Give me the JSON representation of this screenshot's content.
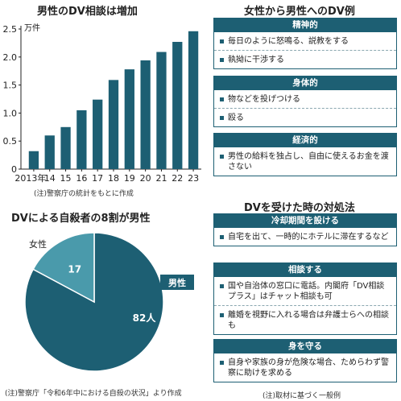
{
  "colors": {
    "bar": "#1d5f73",
    "pie_main": "#1d5f73",
    "pie_minor": "#4a9aab",
    "panel": "#1d5f73",
    "panel_text": "#ffffff"
  },
  "left_top": {
    "title": "男性のDV相談は増加",
    "note": "(注)警察庁の統計をもとに作成"
  },
  "left_bottom": {
    "title": "DVによる自殺者の8割が男性",
    "note": "(注)警察庁「令和6年中における自殺の状況」より作成"
  },
  "right_top": {
    "title": "女性から男性へのDV例",
    "panels": [
      {
        "head": "精神的",
        "items": [
          "毎日のように怒鳴る、説教をする",
          "執拗に干渉する"
        ]
      },
      {
        "head": "身体的",
        "items": [
          "物などを投げつける",
          "殴る"
        ]
      },
      {
        "head": "経済的",
        "items": [
          "男性の給料を独占し、自由に使えるお金を渡さない"
        ]
      }
    ]
  },
  "right_bottom": {
    "title": "DVを受けた時の対処法",
    "note": "(注)取材に基づく一般例",
    "panels": [
      {
        "head": "冷却期間を設ける",
        "items": [
          "自宅を出て、一時的にホテルに滞在するなど"
        ]
      },
      {
        "head": "相談する",
        "items": [
          "国や自治体の窓口に電話。内閣府「DV相談プラス」はチャット相談も可",
          "離婚を視野に入れる場合は弁護士らへの相談も"
        ]
      },
      {
        "head": "身を守る",
        "items": [
          "自身や家族の身が危険な場合、ためらわず警察に助けを求める"
        ]
      }
    ]
  },
  "chart_data": [
    {
      "type": "bar",
      "title": "男性のDV相談は増加",
      "unit": "万件",
      "categories": [
        "2013年",
        "14",
        "15",
        "16",
        "17",
        "18",
        "19",
        "20",
        "21",
        "22",
        "23"
      ],
      "values": [
        0.32,
        0.6,
        0.75,
        1.05,
        1.24,
        1.59,
        1.78,
        1.94,
        2.09,
        2.27,
        2.46
      ],
      "yticks": [
        "0",
        "0.5",
        "1.0",
        "1.5",
        "2.0",
        "2.5"
      ],
      "ylim": [
        0,
        2.5
      ],
      "grid": false
    },
    {
      "type": "pie",
      "title": "DVによる自殺者の8割が男性",
      "slices": [
        {
          "label": "男性",
          "value": 82,
          "value_label": "82人"
        },
        {
          "label": "女性",
          "value": 17,
          "value_label": "17"
        }
      ]
    }
  ]
}
